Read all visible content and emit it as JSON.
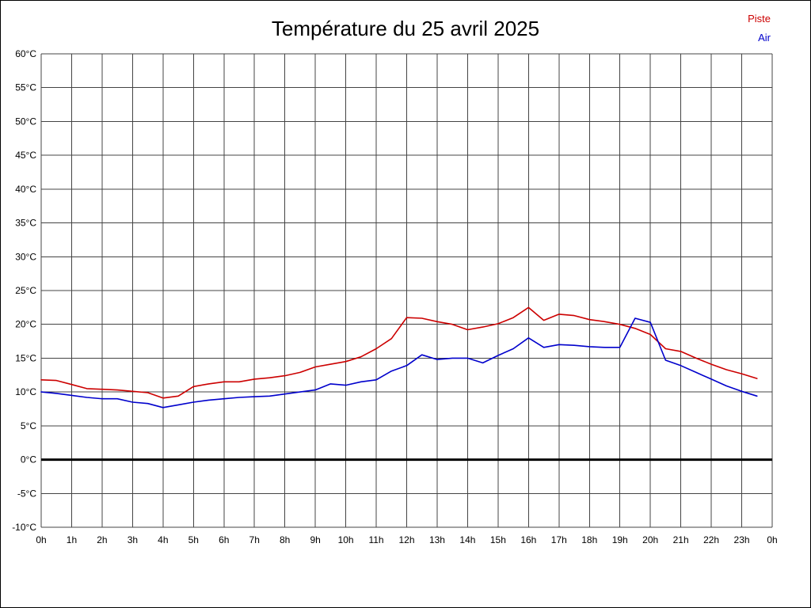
{
  "header": {
    "title": "Température du 25 avril 2025"
  },
  "legend": {
    "piste": "Piste",
    "air": "Air"
  },
  "colors": {
    "piste": "#cc0000",
    "air": "#0000cc",
    "grid": "#444444",
    "zero_line": "#000000",
    "text": "#000000",
    "background": "#ffffff"
  },
  "chart_data": {
    "type": "line",
    "title": "Température du 25 avril 2025",
    "xlabel": "",
    "ylabel": "",
    "x_unit": "h",
    "y_unit": "°C",
    "xlim": [
      0,
      24
    ],
    "ylim": [
      -10,
      60
    ],
    "ytick_step": 5,
    "grid": true,
    "zero_line": true,
    "legend_position": "top-right",
    "ytick_labels": [
      "60°C",
      "55°C",
      "50°C",
      "45°C",
      "40°C",
      "35°C",
      "30°C",
      "25°C",
      "20°C",
      "15°C",
      "10°C",
      "5°C",
      "0°C",
      "-5°C",
      "-10°C"
    ],
    "xtick_labels": [
      "0h",
      "1h",
      "2h",
      "3h",
      "4h",
      "5h",
      "6h",
      "7h",
      "8h",
      "9h",
      "10h",
      "11h",
      "12h",
      "13h",
      "14h",
      "15h",
      "16h",
      "17h",
      "18h",
      "19h",
      "20h",
      "21h",
      "22h",
      "23h",
      "0h"
    ],
    "x": [
      0,
      0.5,
      1,
      1.5,
      2,
      2.5,
      3,
      3.5,
      4,
      4.5,
      5,
      5.5,
      6,
      6.5,
      7,
      7.5,
      8,
      8.5,
      9,
      9.5,
      10,
      10.5,
      11,
      11.5,
      12,
      12.5,
      13,
      13.5,
      14,
      14.5,
      15,
      15.5,
      16,
      16.5,
      17,
      17.5,
      18,
      18.5,
      19,
      19.5,
      20,
      20.5,
      21,
      21.5,
      22,
      22.5,
      23,
      23.5
    ],
    "series": [
      {
        "name": "Piste",
        "color": "#cc0000",
        "values": [
          11.8,
          11.7,
          11.1,
          10.5,
          10.4,
          10.3,
          10.1,
          9.9,
          9.1,
          9.4,
          10.8,
          11.2,
          11.5,
          11.5,
          11.9,
          12.1,
          12.4,
          12.9,
          13.7,
          14.1,
          14.5,
          15.2,
          16.4,
          17.9,
          21.0,
          20.9,
          20.4,
          20.0,
          19.2,
          19.6,
          20.1,
          21.0,
          22.5,
          20.6,
          21.5,
          21.3,
          20.7,
          20.4,
          20.0,
          19.4,
          18.5,
          16.4,
          16.0,
          15.0,
          14.1,
          13.3,
          12.7,
          12.0
        ]
      },
      {
        "name": "Air",
        "color": "#0000cc",
        "values": [
          10.0,
          9.8,
          9.5,
          9.2,
          9.0,
          9.0,
          8.5,
          8.3,
          7.7,
          8.1,
          8.5,
          8.8,
          9.0,
          9.2,
          9.3,
          9.4,
          9.7,
          10.0,
          10.3,
          11.2,
          11.0,
          11.5,
          11.8,
          13.1,
          13.9,
          15.5,
          14.8,
          15.0,
          15.0,
          14.3,
          15.4,
          16.4,
          18.0,
          16.6,
          17.0,
          16.9,
          16.7,
          16.6,
          16.6,
          20.9,
          20.3,
          14.7,
          13.9,
          12.9,
          11.9,
          10.9,
          10.1,
          9.4
        ]
      }
    ]
  }
}
